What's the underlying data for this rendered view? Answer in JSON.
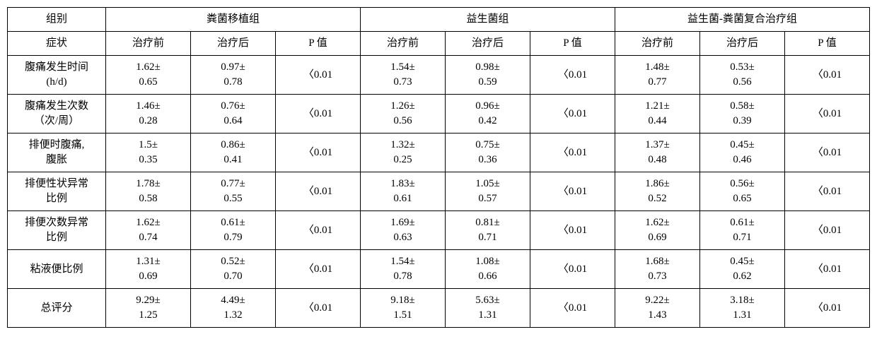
{
  "table": {
    "background": "#ffffff",
    "border_color": "#000000",
    "font_family": "SimSun",
    "font_size_pt": 15,
    "corner_label": "组别",
    "symptom_label": "症状",
    "groups": [
      {
        "name": "粪菌移植组"
      },
      {
        "name": "益生菌组"
      },
      {
        "name": "益生菌-粪菌复合治疗组"
      }
    ],
    "subheaders": [
      "治疗前",
      "治疗后",
      "P 值"
    ],
    "rows": [
      {
        "label": "腹痛发生时间\n(h/d)",
        "cells": [
          "1.62±\n0.65",
          "0.97±\n0.78",
          "〈0.01",
          "1.54±\n0.73",
          "0.98±\n0.59",
          "〈0.01",
          "1.48±\n0.77",
          "0.53±\n0.56",
          "〈0.01"
        ]
      },
      {
        "label": "腹痛发生次数\n（次/周）",
        "cells": [
          "1.46±\n0.28",
          "0.76±\n0.64",
          "〈0.01",
          "1.26±\n0.56",
          "0.96±\n0.42",
          "〈0.01",
          "1.21±\n0.44",
          "0.58±\n0.39",
          "〈0.01"
        ]
      },
      {
        "label": "排便时腹痛,\n腹胀",
        "cells": [
          "1.5±\n0.35",
          "0.86±\n0.41",
          "〈0.01",
          "1.32±\n0.25",
          "0.75±\n0.36",
          "〈0.01",
          "1.37±\n0.48",
          "0.45±\n0.46",
          "〈0.01"
        ]
      },
      {
        "label": "排便性状异常\n比例",
        "cells": [
          "1.78±\n0.58",
          "0.77±\n0.55",
          "〈0.01",
          "1.83±\n0.61",
          "1.05±\n0.57",
          "〈0.01",
          "1.86±\n0.52",
          "0.56±\n0.65",
          "〈0.01"
        ]
      },
      {
        "label": "排便次数异常\n比例",
        "cells": [
          "1.62±\n0.74",
          "0.61±\n0.79",
          "〈0.01",
          "1.69±\n0.63",
          "0.81±\n0.71",
          "〈0.01",
          "1.62±\n0.69",
          "0.61±\n0.71",
          "〈0.01"
        ]
      },
      {
        "label": "粘液便比例",
        "cells": [
          "1.31±\n0.69",
          "0.52±\n0.70",
          "〈0.01",
          "1.54±\n0.78",
          "1.08±\n0.66",
          "〈0.01",
          "1.68±\n0.73",
          "0.45±\n0.62",
          "〈0.01"
        ]
      },
      {
        "label": "总评分",
        "cells": [
          "9.29±\n1.25",
          "4.49±\n1.32",
          "〈0.01",
          "9.18±\n1.51",
          "5.63±\n1.31",
          "〈0.01",
          "9.22±\n1.43",
          "3.18±\n1.31",
          "〈0.01"
        ]
      }
    ]
  }
}
